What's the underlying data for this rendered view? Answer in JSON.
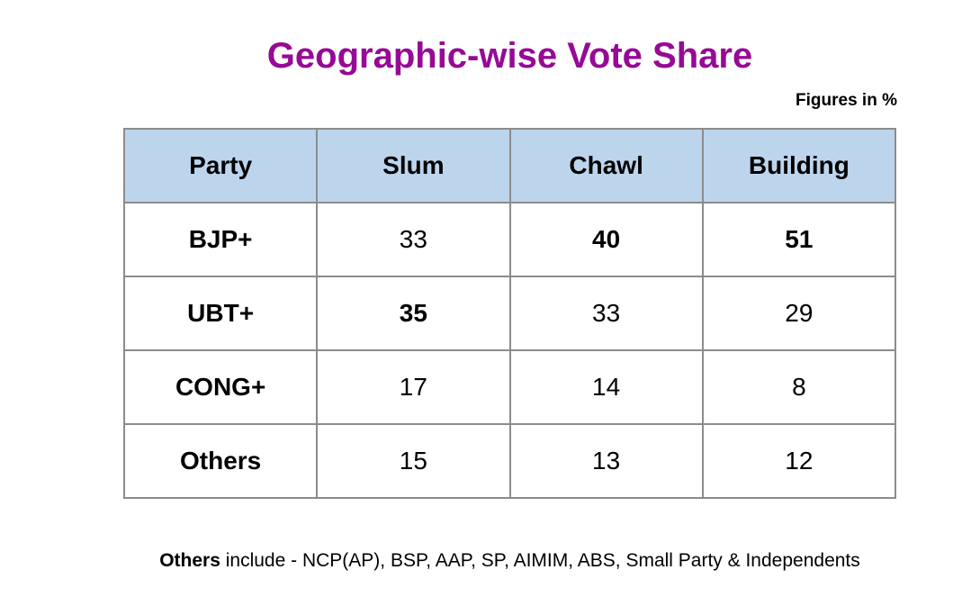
{
  "title": "Geographic-wise Vote Share",
  "units_note": "Figures in %",
  "footnote": {
    "bold_part": "Others",
    "rest": " include - NCP(AP), BSP, AAP, SP, AIMIM, ABS, Small Party & Independents"
  },
  "colors": {
    "title": "#960a96",
    "header_bg": "#bdd5ec",
    "border": "#8c8c8c"
  },
  "chart_data": {
    "type": "table",
    "title": "Geographic-wise Vote Share",
    "columns": [
      "Party",
      "Slum",
      "Chawl",
      "Building"
    ],
    "rows": [
      {
        "party": "BJP+",
        "values": [
          "33",
          "40",
          "51"
        ],
        "bold": [
          false,
          true,
          true
        ]
      },
      {
        "party": "UBT+",
        "values": [
          "35",
          "33",
          "29"
        ],
        "bold": [
          true,
          false,
          false
        ]
      },
      {
        "party": "CONG+",
        "values": [
          "17",
          "14",
          "8"
        ],
        "bold": [
          false,
          false,
          false
        ]
      },
      {
        "party": "Others",
        "values": [
          "15",
          "13",
          "12"
        ],
        "bold": [
          false,
          false,
          false
        ]
      }
    ]
  }
}
